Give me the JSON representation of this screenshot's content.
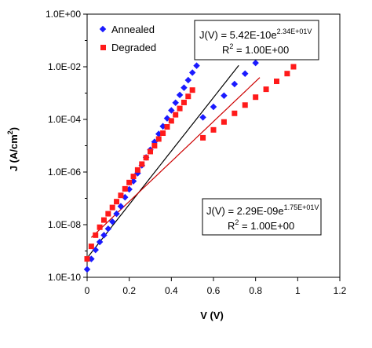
{
  "chart_data": {
    "type": "scatter",
    "xlabel": "V (V)",
    "ylabel_main": "J (A/cm",
    "ylabel_sup": "2",
    "ylabel_tail": ")",
    "xlim": [
      0,
      1.2
    ],
    "x_ticks": [
      "0",
      "0.2",
      "0.4",
      "0.6",
      "0.8",
      "1",
      "1.2"
    ],
    "ylim_log10": [
      -10,
      0
    ],
    "y_scale": "log",
    "y_ticks": [
      "1.0E+00",
      "1.0E-02",
      "1.0E-04",
      "1.0E-06",
      "1.0E-08",
      "1.0E-10"
    ],
    "grid": false,
    "legend_position": "top-left",
    "series": [
      {
        "name": "Annealed",
        "marker": "diamond",
        "color": "#1a1aff",
        "points": [
          [
            0.0,
            2e-10
          ],
          [
            0.02,
            5e-10
          ],
          [
            0.04,
            1.1e-09
          ],
          [
            0.06,
            2.2e-09
          ],
          [
            0.08,
            4e-09
          ],
          [
            0.1,
            7e-09
          ],
          [
            0.12,
            1.3e-08
          ],
          [
            0.14,
            2.6e-08
          ],
          [
            0.16,
            5e-08
          ],
          [
            0.18,
            1.1e-07
          ],
          [
            0.2,
            2.2e-07
          ],
          [
            0.22,
            4.5e-07
          ],
          [
            0.24,
            9e-07
          ],
          [
            0.26,
            1.8e-06
          ],
          [
            0.28,
            3.6e-06
          ],
          [
            0.3,
            7e-06
          ],
          [
            0.32,
            1.4e-05
          ],
          [
            0.34,
            2.8e-05
          ],
          [
            0.36,
            5.5e-05
          ],
          [
            0.38,
            0.00011
          ],
          [
            0.4,
            0.00022
          ],
          [
            0.42,
            0.00043
          ],
          [
            0.44,
            0.00085
          ],
          [
            0.46,
            0.0016
          ],
          [
            0.48,
            0.0031
          ],
          [
            0.5,
            0.006
          ],
          [
            0.52,
            0.011
          ],
          [
            0.55,
            0.00012
          ],
          [
            0.6,
            0.0003
          ],
          [
            0.65,
            0.0008
          ],
          [
            0.7,
            0.0022
          ],
          [
            0.75,
            0.0055
          ],
          [
            0.8,
            0.014
          ],
          [
            0.85,
            0.033
          ]
        ]
      },
      {
        "name": "Degraded",
        "marker": "square",
        "color": "#ff1a1a",
        "points": [
          [
            0.0,
            5e-10
          ],
          [
            0.02,
            1.5e-09
          ],
          [
            0.04,
            4e-09
          ],
          [
            0.06,
            8e-09
          ],
          [
            0.08,
            1.5e-08
          ],
          [
            0.1,
            2.6e-08
          ],
          [
            0.12,
            4.5e-08
          ],
          [
            0.14,
            7.5e-08
          ],
          [
            0.16,
            1.3e-07
          ],
          [
            0.18,
            2.3e-07
          ],
          [
            0.2,
            4e-07
          ],
          [
            0.22,
            6.8e-07
          ],
          [
            0.24,
            1.2e-06
          ],
          [
            0.26,
            2e-06
          ],
          [
            0.28,
            3.5e-06
          ],
          [
            0.3,
            6e-06
          ],
          [
            0.32,
            1e-05
          ],
          [
            0.34,
            1.8e-05
          ],
          [
            0.36,
            3e-05
          ],
          [
            0.38,
            5.2e-05
          ],
          [
            0.4,
            8.8e-05
          ],
          [
            0.42,
            0.00015
          ],
          [
            0.44,
            0.00026
          ],
          [
            0.46,
            0.00044
          ],
          [
            0.48,
            0.00075
          ],
          [
            0.5,
            0.0013
          ],
          [
            0.55,
            2e-05
          ],
          [
            0.6,
            4e-05
          ],
          [
            0.65,
            8e-05
          ],
          [
            0.7,
            0.00017
          ],
          [
            0.75,
            0.00035
          ],
          [
            0.8,
            0.0007
          ],
          [
            0.85,
            0.0014
          ],
          [
            0.9,
            0.0028
          ],
          [
            0.95,
            0.0055
          ],
          [
            0.98,
            0.01
          ]
        ]
      }
    ],
    "fits": [
      {
        "series": "Annealed",
        "color": "#000000",
        "prefactor": 5.42e-10,
        "exponent": 23.4,
        "x_range": [
          0,
          0.72
        ]
      },
      {
        "series": "Degraded",
        "color": "#cc0000",
        "prefactor": 2.29e-09,
        "exponent": 17.5,
        "x_range": [
          0.02,
          0.82
        ]
      }
    ],
    "annotations": [
      {
        "id": "annealed",
        "prefix": "J(V) = 5.42E-10e",
        "sup": "2.34E+01V",
        "r2_label": "R",
        "r2_sup": "2",
        "r2_value": " = 1.00E+00"
      },
      {
        "id": "degraded",
        "prefix": "J(V) = 2.29E-09e",
        "sup": "1.75E+01V",
        "r2_label": "R",
        "r2_sup": "2",
        "r2_value": " = 1.00E+00"
      }
    ]
  }
}
